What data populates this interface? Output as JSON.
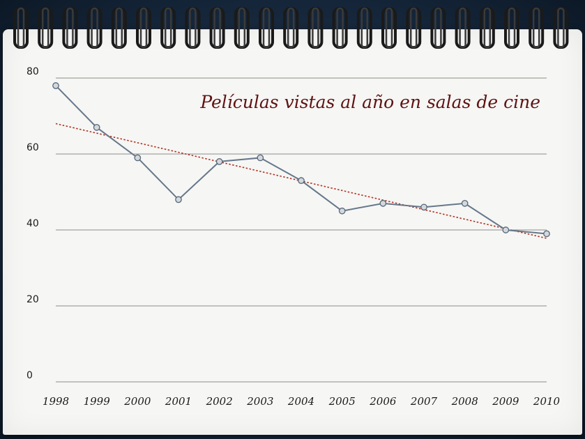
{
  "chart_data": {
    "type": "line",
    "title": "Películas vistas al año en salas de cine",
    "xlabel": "",
    "ylabel": "",
    "categories": [
      "1998",
      "1999",
      "2000",
      "2001",
      "2002",
      "2003",
      "2004",
      "2005",
      "2006",
      "2007",
      "2008",
      "2009",
      "2010"
    ],
    "series": [
      {
        "values": [
          78,
          67,
          59,
          48,
          58,
          59,
          53,
          45,
          47,
          46,
          47,
          40,
          39
        ]
      }
    ],
    "trendline": {
      "type": "linear",
      "start": 68,
      "end": 37.8,
      "style": "dotted"
    },
    "ylim": [
      0,
      80
    ],
    "yticks": [
      0,
      20,
      40,
      60,
      80
    ],
    "grid": true,
    "colors": {
      "line": "#65778a",
      "marker_fill": "#d4d8dc",
      "trend": "#b03020",
      "title": "#5e1212",
      "grid": "#8c8c8c"
    }
  }
}
